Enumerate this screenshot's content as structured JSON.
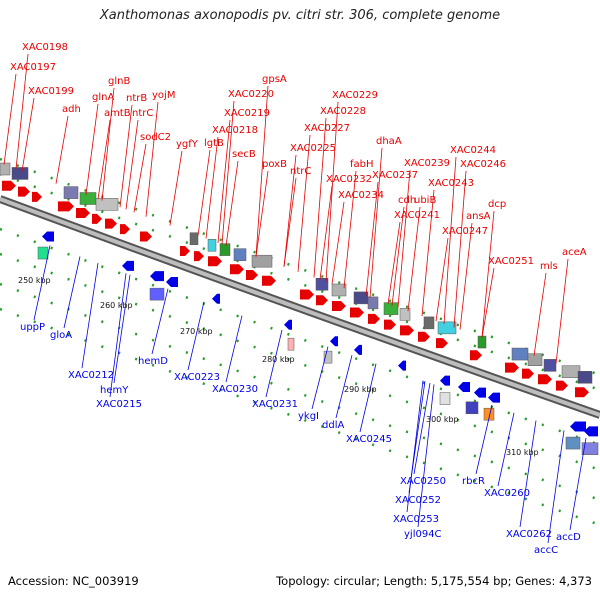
{
  "title": "Xanthomonas axonopodis pv. citri str. 306, complete genome",
  "footer": {
    "accession": "Accession: NC_003919",
    "topology": "Topology: circular; Length: 5,175,554 bp; Genes: 4,373"
  },
  "colors": {
    "forward": "#e60000",
    "reverse": "#0000e6",
    "backbone": "#888888",
    "tick": "#2a9a2a"
  },
  "scale_labels": [
    "250 kbp",
    "260 kbp",
    "270 kbp",
    "280 kbp",
    "290 kbp",
    "300 kbp",
    "310 kbp"
  ],
  "forward_labels": [
    "XAC0198",
    "XAC0197",
    "XAC0199",
    "adh",
    "glnB",
    "glnA",
    "ntrB",
    "yojM",
    "amtB",
    "ntrC",
    "sodC2",
    "gpsA",
    "XAC0220",
    "XAC0219",
    "XAC0218",
    "ygfY",
    "lgtB",
    "secB",
    "XAC0229",
    "XAC0228",
    "XAC0227",
    "XAC0225",
    "ntrC",
    "poxB",
    "dhaA",
    "fabH",
    "XAC0232",
    "XAC0234",
    "XAC0239",
    "XAC0237",
    "cdh",
    "ubiB",
    "XAC0244",
    "XAC0246",
    "XAC0243",
    "XAC0241",
    "ansA",
    "dcp",
    "XAC0247",
    "aceA",
    "XAC0251",
    "mls"
  ],
  "reverse_labels": [
    "uppP",
    "gloA",
    "XAC0212",
    "hemY",
    "XAC0215",
    "hemD",
    "XAC0223",
    "XAC0230",
    "XAC0231",
    "ykgI",
    "ddlA",
    "XAC0245",
    "XAC0250",
    "XAC0252",
    "XAC0253",
    "yjl094C",
    "rbcR",
    "XAC0260",
    "XAC0262",
    "accC",
    "accD"
  ]
}
